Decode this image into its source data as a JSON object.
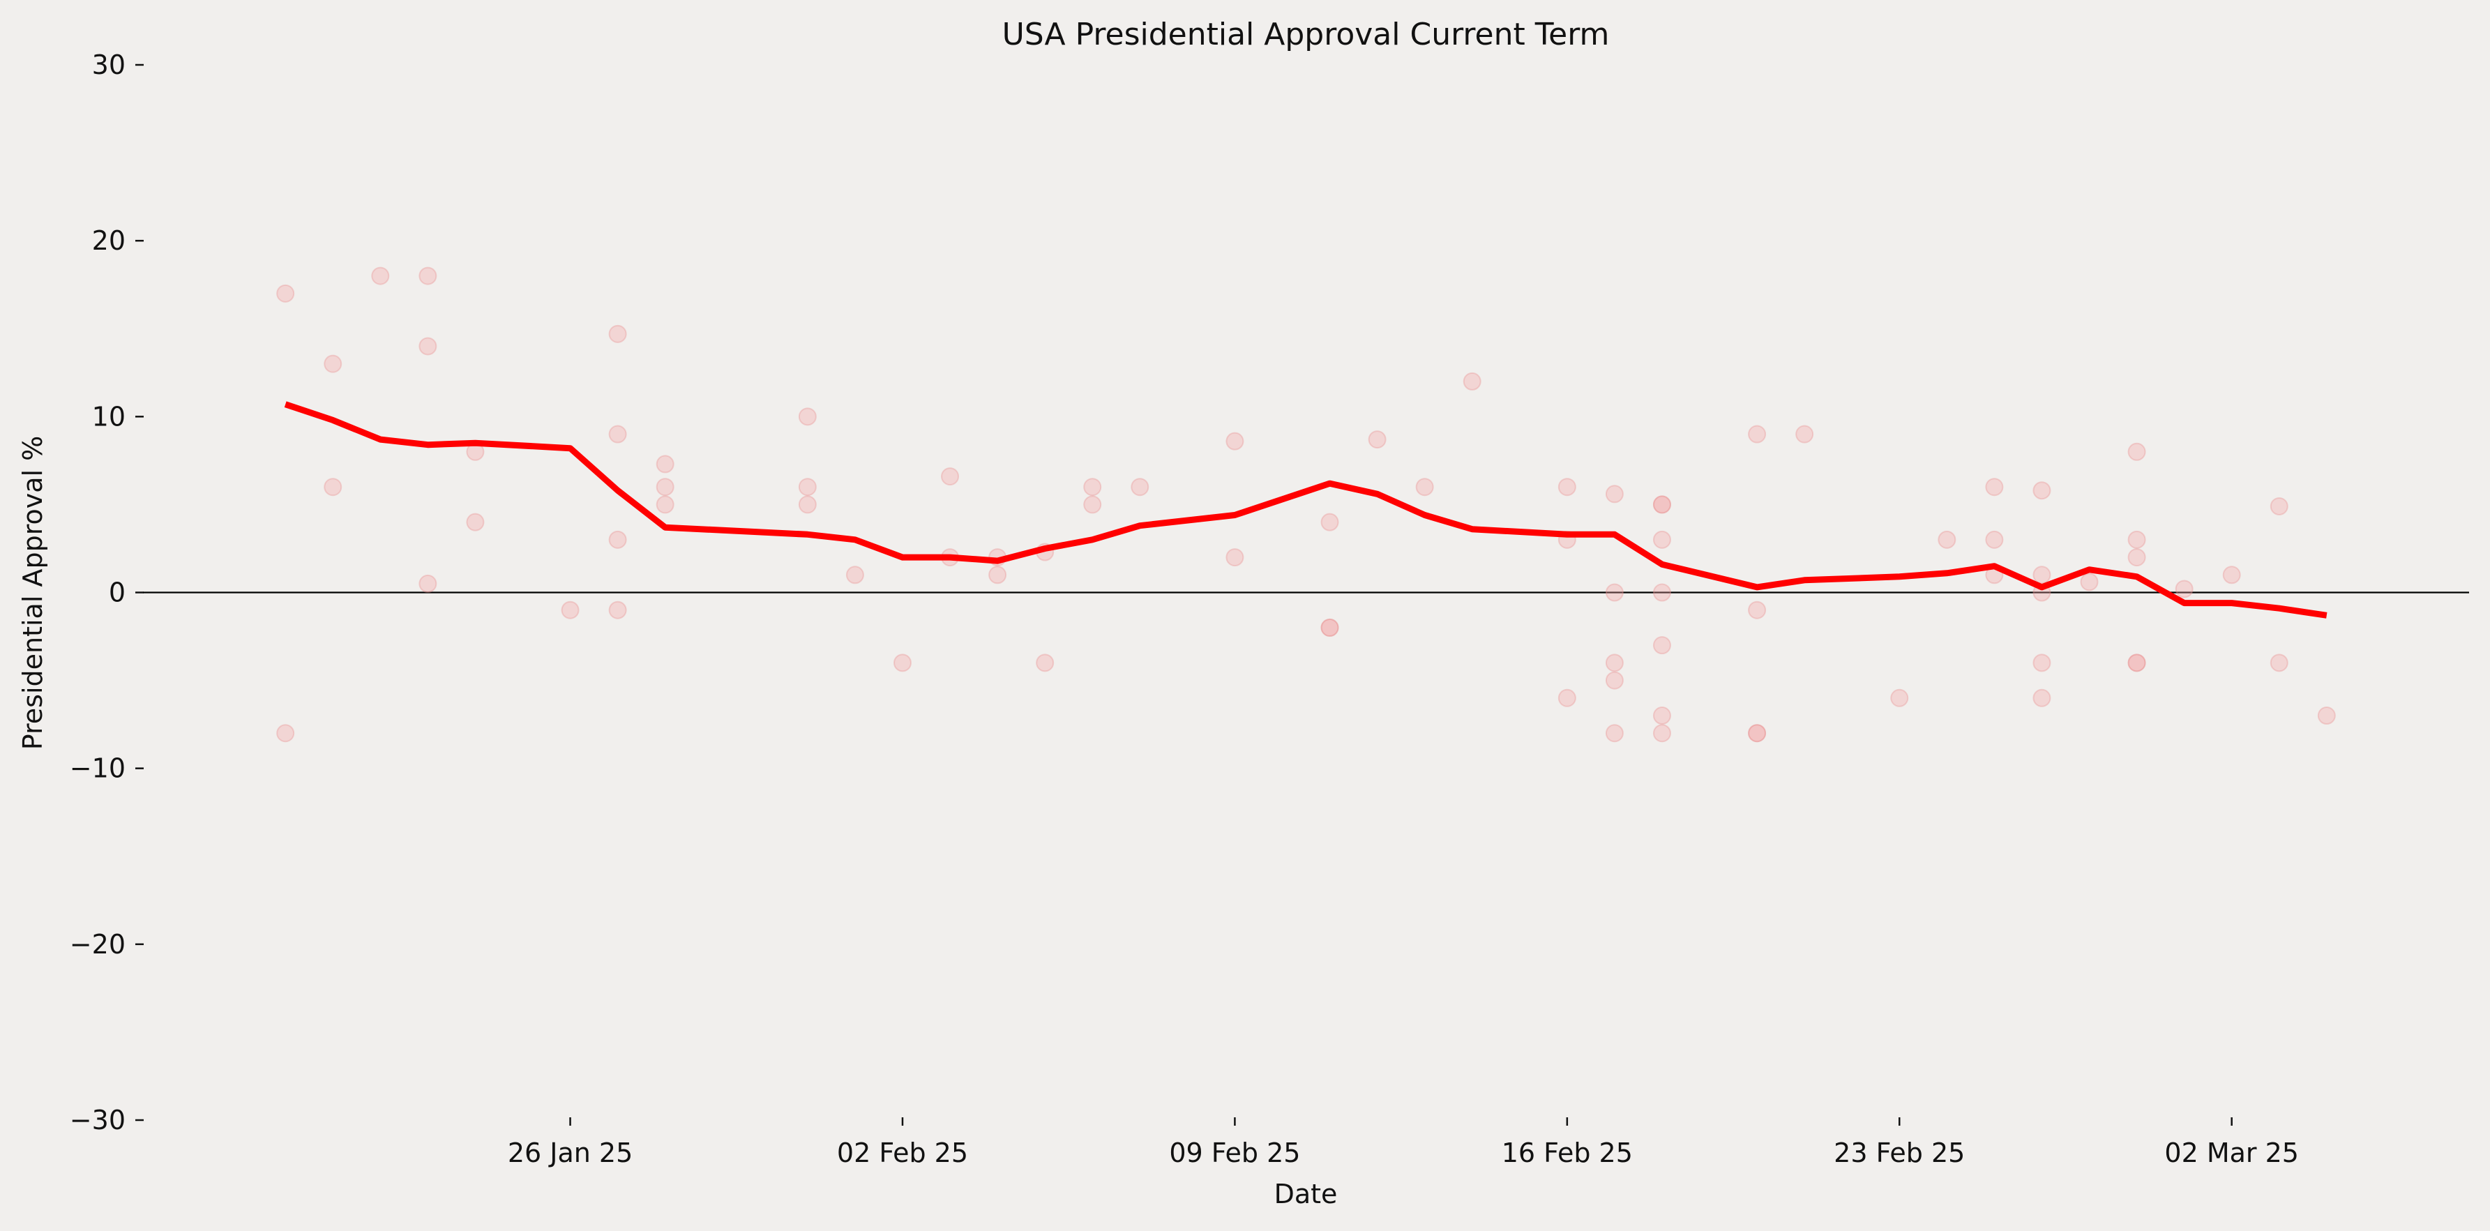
{
  "chart_data": {
    "type": "scatter",
    "title": "USA Presidential Approval Current Term",
    "xlabel": "Date",
    "ylabel": "Presidential Approval %",
    "ylim": [
      -30,
      30
    ],
    "xlim": [
      "2025-01-17",
      "2025-03-07"
    ],
    "yticks": [
      -30,
      -20,
      -10,
      0,
      10,
      20,
      30
    ],
    "yticklabels": [
      "−30",
      "−20",
      "−10",
      "0",
      "10",
      "20",
      "30"
    ],
    "xticks": [
      "2025-01-26",
      "2025-02-02",
      "2025-02-09",
      "2025-02-16",
      "2025-02-23",
      "2025-03-02"
    ],
    "xticklabels": [
      "26 Jan 25",
      "02 Feb 25",
      "09 Feb 25",
      "16 Feb 25",
      "23 Feb 25",
      "02 Mar 25"
    ],
    "reference_line": {
      "y": 0,
      "color": "#000000"
    },
    "grid": false,
    "series": [
      {
        "type": "scatter",
        "color": "#f4a7a7",
        "points": [
          {
            "x": "2025-01-20",
            "y": 17
          },
          {
            "x": "2025-01-20",
            "y": -8
          },
          {
            "x": "2025-01-21",
            "y": 13
          },
          {
            "x": "2025-01-21",
            "y": 6
          },
          {
            "x": "2025-01-22",
            "y": 18
          },
          {
            "x": "2025-01-23",
            "y": 18
          },
          {
            "x": "2025-01-23",
            "y": 14
          },
          {
            "x": "2025-01-23",
            "y": 0.5
          },
          {
            "x": "2025-01-24",
            "y": 8
          },
          {
            "x": "2025-01-24",
            "y": 4
          },
          {
            "x": "2025-01-26",
            "y": -1
          },
          {
            "x": "2025-01-27",
            "y": 14.7
          },
          {
            "x": "2025-01-27",
            "y": 9
          },
          {
            "x": "2025-01-27",
            "y": 3
          },
          {
            "x": "2025-01-27",
            "y": -1
          },
          {
            "x": "2025-01-28",
            "y": 7.3
          },
          {
            "x": "2025-01-28",
            "y": 6
          },
          {
            "x": "2025-01-28",
            "y": 5
          },
          {
            "x": "2025-01-31",
            "y": 10
          },
          {
            "x": "2025-01-31",
            "y": 6
          },
          {
            "x": "2025-01-31",
            "y": 5
          },
          {
            "x": "2025-02-01",
            "y": 1
          },
          {
            "x": "2025-02-02",
            "y": -4
          },
          {
            "x": "2025-02-03",
            "y": 6.6
          },
          {
            "x": "2025-02-03",
            "y": 2
          },
          {
            "x": "2025-02-04",
            "y": 2
          },
          {
            "x": "2025-02-04",
            "y": 1
          },
          {
            "x": "2025-02-05",
            "y": 2.3
          },
          {
            "x": "2025-02-05",
            "y": -4
          },
          {
            "x": "2025-02-06",
            "y": 6
          },
          {
            "x": "2025-02-06",
            "y": 5
          },
          {
            "x": "2025-02-07",
            "y": 6
          },
          {
            "x": "2025-02-09",
            "y": 8.6
          },
          {
            "x": "2025-02-09",
            "y": 2
          },
          {
            "x": "2025-02-11",
            "y": 4
          },
          {
            "x": "2025-02-11",
            "y": -2
          },
          {
            "x": "2025-02-11",
            "y": -2
          },
          {
            "x": "2025-02-12",
            "y": 8.7
          },
          {
            "x": "2025-02-13",
            "y": 6
          },
          {
            "x": "2025-02-14",
            "y": 12
          },
          {
            "x": "2025-02-16",
            "y": 6
          },
          {
            "x": "2025-02-16",
            "y": 3
          },
          {
            "x": "2025-02-16",
            "y": -6
          },
          {
            "x": "2025-02-17",
            "y": 5.6
          },
          {
            "x": "2025-02-17",
            "y": 0
          },
          {
            "x": "2025-02-17",
            "y": -4
          },
          {
            "x": "2025-02-17",
            "y": -5
          },
          {
            "x": "2025-02-17",
            "y": -8
          },
          {
            "x": "2025-02-18",
            "y": 5
          },
          {
            "x": "2025-02-18",
            "y": 5
          },
          {
            "x": "2025-02-18",
            "y": 3
          },
          {
            "x": "2025-02-18",
            "y": 0
          },
          {
            "x": "2025-02-18",
            "y": -3
          },
          {
            "x": "2025-02-18",
            "y": -7
          },
          {
            "x": "2025-02-18",
            "y": -8
          },
          {
            "x": "2025-02-20",
            "y": 9
          },
          {
            "x": "2025-02-20",
            "y": -1
          },
          {
            "x": "2025-02-20",
            "y": -8
          },
          {
            "x": "2025-02-20",
            "y": -8
          },
          {
            "x": "2025-02-21",
            "y": 9
          },
          {
            "x": "2025-02-23",
            "y": -6
          },
          {
            "x": "2025-02-24",
            "y": 3
          },
          {
            "x": "2025-02-25",
            "y": 6
          },
          {
            "x": "2025-02-25",
            "y": 3
          },
          {
            "x": "2025-02-25",
            "y": 1
          },
          {
            "x": "2025-02-26",
            "y": 5.8
          },
          {
            "x": "2025-02-26",
            "y": 1
          },
          {
            "x": "2025-02-26",
            "y": 0
          },
          {
            "x": "2025-02-26",
            "y": -4
          },
          {
            "x": "2025-02-26",
            "y": -6
          },
          {
            "x": "2025-02-27",
            "y": 0.6
          },
          {
            "x": "2025-02-28",
            "y": 8
          },
          {
            "x": "2025-02-28",
            "y": 3
          },
          {
            "x": "2025-02-28",
            "y": 2
          },
          {
            "x": "2025-02-28",
            "y": -4
          },
          {
            "x": "2025-02-28",
            "y": -4
          },
          {
            "x": "2025-03-01",
            "y": 0.2
          },
          {
            "x": "2025-03-02",
            "y": 1
          },
          {
            "x": "2025-03-03",
            "y": 4.9
          },
          {
            "x": "2025-03-03",
            "y": -4
          },
          {
            "x": "2025-03-04",
            "y": -7
          }
        ]
      },
      {
        "type": "line",
        "color": "#ff0000",
        "points": [
          {
            "x": "2025-01-20",
            "y": 10.7
          },
          {
            "x": "2025-01-21",
            "y": 9.8
          },
          {
            "x": "2025-01-22",
            "y": 8.7
          },
          {
            "x": "2025-01-23",
            "y": 8.4
          },
          {
            "x": "2025-01-24",
            "y": 8.5
          },
          {
            "x": "2025-01-26",
            "y": 8.2
          },
          {
            "x": "2025-01-27",
            "y": 5.8
          },
          {
            "x": "2025-01-28",
            "y": 3.7
          },
          {
            "x": "2025-01-31",
            "y": 3.3
          },
          {
            "x": "2025-02-01",
            "y": 3.0
          },
          {
            "x": "2025-02-02",
            "y": 2.0
          },
          {
            "x": "2025-02-03",
            "y": 2.0
          },
          {
            "x": "2025-02-04",
            "y": 1.8
          },
          {
            "x": "2025-02-05",
            "y": 2.5
          },
          {
            "x": "2025-02-06",
            "y": 3.0
          },
          {
            "x": "2025-02-07",
            "y": 3.8
          },
          {
            "x": "2025-02-09",
            "y": 4.4
          },
          {
            "x": "2025-02-11",
            "y": 6.2
          },
          {
            "x": "2025-02-12",
            "y": 5.6
          },
          {
            "x": "2025-02-13",
            "y": 4.4
          },
          {
            "x": "2025-02-14",
            "y": 3.6
          },
          {
            "x": "2025-02-16",
            "y": 3.3
          },
          {
            "x": "2025-02-17",
            "y": 3.3
          },
          {
            "x": "2025-02-18",
            "y": 1.6
          },
          {
            "x": "2025-02-20",
            "y": 0.3
          },
          {
            "x": "2025-02-21",
            "y": 0.7
          },
          {
            "x": "2025-02-23",
            "y": 0.9
          },
          {
            "x": "2025-02-24",
            "y": 1.1
          },
          {
            "x": "2025-02-25",
            "y": 1.5
          },
          {
            "x": "2025-02-26",
            "y": 0.3
          },
          {
            "x": "2025-02-27",
            "y": 1.3
          },
          {
            "x": "2025-02-28",
            "y": 0.9
          },
          {
            "x": "2025-03-01",
            "y": -0.6
          },
          {
            "x": "2025-03-02",
            "y": -0.6
          },
          {
            "x": "2025-03-03",
            "y": -0.9
          },
          {
            "x": "2025-03-04",
            "y": -1.3
          }
        ]
      }
    ]
  }
}
